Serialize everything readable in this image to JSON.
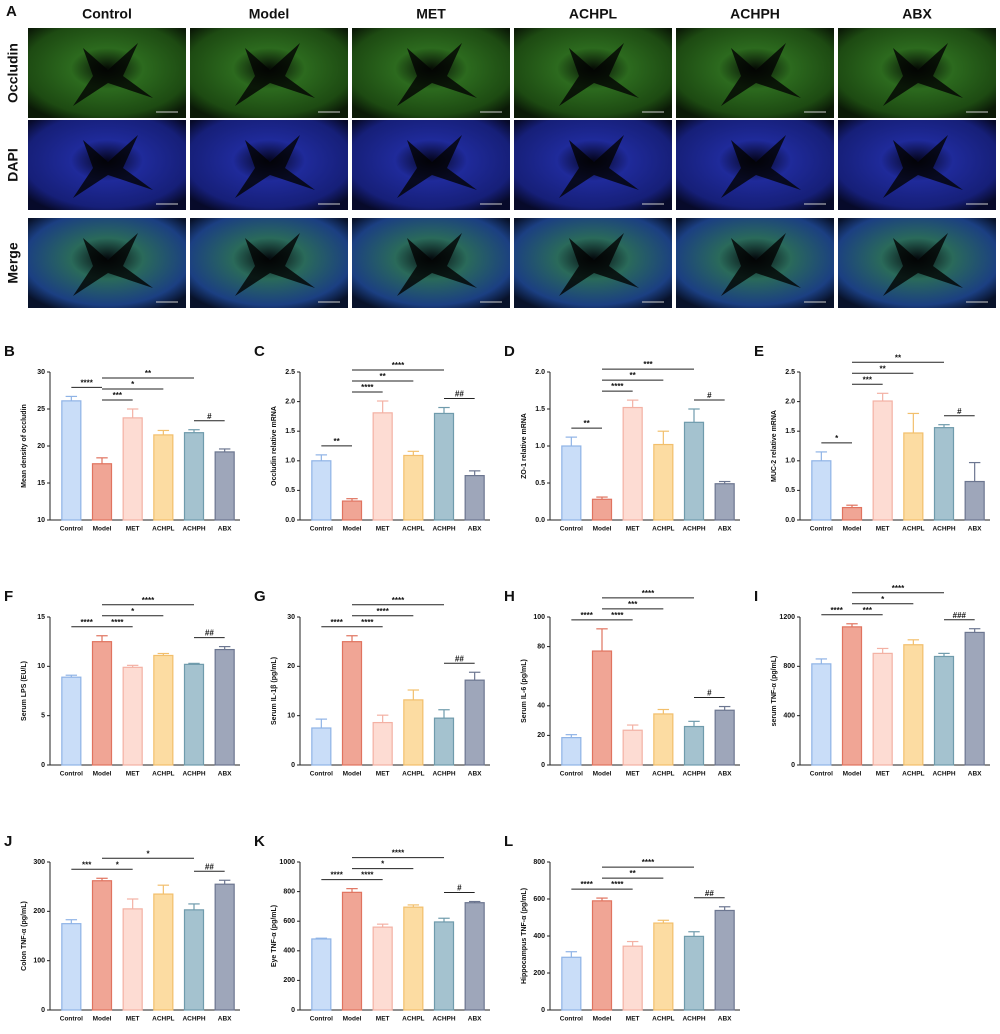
{
  "panel_a": {
    "label": "A",
    "columns": [
      "Control",
      "Model",
      "MET",
      "ACHPL",
      "ACHPH",
      "ABX"
    ],
    "rows": [
      "Occludin",
      "DAPI",
      "Merge"
    ]
  },
  "style": {
    "fills": [
      "#c9ddf8",
      "#f0a595",
      "#fddcd3",
      "#fcdca2",
      "#a4c2cf",
      "#9ea6ba"
    ],
    "edges": [
      "#8fb3e6",
      "#e0735f",
      "#f3b1a4",
      "#f2bf6c",
      "#6f9bac",
      "#6c7690"
    ]
  },
  "chart_data": [
    {
      "type": "bar",
      "panel": "B",
      "ylabel": "Mean density of occludin",
      "categories": [
        "Control",
        "Model",
        "MET",
        "ACHPL",
        "ACHPH",
        "ABX"
      ],
      "values": [
        26.1,
        17.6,
        23.8,
        21.5,
        21.8,
        19.2
      ],
      "errors": [
        0.6,
        0.8,
        1.2,
        0.6,
        0.4,
        0.4
      ],
      "ylim": [
        10,
        30
      ],
      "yticks": [
        10,
        15,
        20,
        25,
        30
      ],
      "significance": [
        {
          "from": 0,
          "to": 1,
          "label": "****"
        },
        {
          "from": 1,
          "to": 2,
          "label": "***"
        },
        {
          "from": 1,
          "to": 3,
          "label": "*"
        },
        {
          "from": 1,
          "to": 4,
          "label": "**"
        },
        {
          "from": 4,
          "to": 5,
          "label": "#"
        }
      ]
    },
    {
      "type": "bar",
      "panel": "C",
      "ylabel": "Occludin relative mRNA",
      "categories": [
        "Control",
        "Model",
        "MET",
        "ACHPL",
        "ACHPH",
        "ABX"
      ],
      "values": [
        1.0,
        0.32,
        1.81,
        1.09,
        1.8,
        0.75
      ],
      "errors": [
        0.1,
        0.04,
        0.2,
        0.07,
        0.1,
        0.08
      ],
      "ylim": [
        0,
        2.5
      ],
      "yticks": [
        {
          "value": 0,
          "label": "0.0"
        },
        0.5,
        {
          "value": 1,
          "label": "1.0"
        },
        1.5,
        {
          "value": 2,
          "label": "2.0"
        },
        2.5
      ],
      "significance": [
        {
          "from": 0,
          "to": 1,
          "label": "**"
        },
        {
          "from": 1,
          "to": 2,
          "label": "****"
        },
        {
          "from": 1,
          "to": 3,
          "label": "**"
        },
        {
          "from": 1,
          "to": 4,
          "label": "****"
        },
        {
          "from": 4,
          "to": 5,
          "label": "##"
        }
      ]
    },
    {
      "type": "bar",
      "panel": "D",
      "ylabel": "ZO-1 relative mRNA",
      "categories": [
        "Control",
        "Model",
        "MET",
        "ACHPL",
        "ACHPH",
        "ABX"
      ],
      "values": [
        1.0,
        0.28,
        1.52,
        1.02,
        1.32,
        0.49
      ],
      "errors": [
        0.12,
        0.03,
        0.1,
        0.18,
        0.18,
        0.03
      ],
      "ylim": [
        0,
        2
      ],
      "yticks": [
        {
          "value": 0,
          "label": "0.0"
        },
        0.5,
        {
          "value": 1,
          "label": "1.0"
        },
        1.5,
        {
          "value": 2,
          "label": "2.0"
        }
      ],
      "significance": [
        {
          "from": 0,
          "to": 1,
          "label": "**"
        },
        {
          "from": 1,
          "to": 2,
          "label": "****"
        },
        {
          "from": 1,
          "to": 3,
          "label": "**"
        },
        {
          "from": 1,
          "to": 4,
          "label": "***"
        },
        {
          "from": 4,
          "to": 5,
          "label": "#"
        }
      ]
    },
    {
      "type": "bar",
      "panel": "E",
      "ylabel": "MUC-2 relative mRNA",
      "categories": [
        "Control",
        "Model",
        "MET",
        "ACHPL",
        "ACHPH",
        "ABX"
      ],
      "values": [
        1.0,
        0.21,
        2.01,
        1.47,
        1.56,
        0.65
      ],
      "errors": [
        0.15,
        0.04,
        0.13,
        0.33,
        0.05,
        0.32
      ],
      "ylim": [
        0,
        2.5
      ],
      "yticks": [
        {
          "value": 0,
          "label": "0.0"
        },
        0.5,
        {
          "value": 1,
          "label": "1.0"
        },
        1.5,
        {
          "value": 2,
          "label": "2.0"
        },
        2.5
      ],
      "significance": [
        {
          "from": 0,
          "to": 1,
          "label": "*"
        },
        {
          "from": 1,
          "to": 2,
          "label": "***"
        },
        {
          "from": 1,
          "to": 3,
          "label": "**"
        },
        {
          "from": 1,
          "to": 4,
          "label": "**"
        },
        {
          "from": 4,
          "to": 5,
          "label": "#"
        }
      ]
    },
    {
      "type": "bar",
      "panel": "F",
      "ylabel": "Serum LPS (EU/L)",
      "categories": [
        "Control",
        "Model",
        "MET",
        "ACHPL",
        "ACHPH",
        "ABX"
      ],
      "values": [
        8.9,
        12.5,
        9.9,
        11.1,
        10.2,
        11.7
      ],
      "errors": [
        0.2,
        0.6,
        0.2,
        0.2,
        0.1,
        0.3
      ],
      "ylim": [
        0,
        15
      ],
      "yticks": [
        0,
        5,
        10,
        15
      ],
      "significance": [
        {
          "from": 0,
          "to": 1,
          "label": "****"
        },
        {
          "from": 1,
          "to": 2,
          "label": "****"
        },
        {
          "from": 1,
          "to": 3,
          "label": "*"
        },
        {
          "from": 1,
          "to": 4,
          "label": "****"
        },
        {
          "from": 4,
          "to": 5,
          "label": "##"
        }
      ]
    },
    {
      "type": "bar",
      "panel": "G",
      "ylabel": "Serum IL-1β (pg/mL)",
      "categories": [
        "Control",
        "Model",
        "MET",
        "ACHPL",
        "ACHPH",
        "ABX"
      ],
      "values": [
        7.5,
        25,
        8.6,
        13.2,
        9.5,
        17.2
      ],
      "errors": [
        1.8,
        1.2,
        1.5,
        2,
        1.7,
        1.6
      ],
      "ylim": [
        0,
        30
      ],
      "yticks": [
        0,
        10,
        20,
        30
      ],
      "significance": [
        {
          "from": 0,
          "to": 1,
          "label": "****"
        },
        {
          "from": 1,
          "to": 2,
          "label": "****"
        },
        {
          "from": 1,
          "to": 3,
          "label": "****"
        },
        {
          "from": 1,
          "to": 4,
          "label": "****"
        },
        {
          "from": 4,
          "to": 5,
          "label": "##"
        }
      ]
    },
    {
      "type": "bar",
      "panel": "H",
      "ylabel": "Serum IL-6 (pg/mL)",
      "categories": [
        "Control",
        "Model",
        "MET",
        "ACHPL",
        "ACHPH",
        "ABX"
      ],
      "values": [
        18.5,
        77,
        23.5,
        34.5,
        26,
        37
      ],
      "errors": [
        2,
        15,
        3.5,
        3,
        3.5,
        2.5
      ],
      "ylim": [
        0,
        100
      ],
      "yticks": [
        0,
        20,
        40,
        80,
        100
      ],
      "significance": [
        {
          "from": 0,
          "to": 1,
          "label": "****"
        },
        {
          "from": 1,
          "to": 2,
          "label": "****"
        },
        {
          "from": 1,
          "to": 3,
          "label": "***"
        },
        {
          "from": 1,
          "to": 4,
          "label": "****"
        },
        {
          "from": 4,
          "to": 5,
          "label": "#"
        }
      ]
    },
    {
      "type": "bar",
      "panel": "I",
      "ylabel": "serum TNF-α (pg/mL)",
      "categories": [
        "Control",
        "Model",
        "MET",
        "ACHPL",
        "ACHPH",
        "ABX"
      ],
      "values": [
        820,
        1120,
        905,
        975,
        880,
        1075
      ],
      "errors": [
        40,
        25,
        40,
        40,
        25,
        30
      ],
      "ylim": [
        0,
        1200
      ],
      "yticks": [
        0,
        400,
        800,
        1200
      ],
      "significance": [
        {
          "from": 0,
          "to": 1,
          "label": "****"
        },
        {
          "from": 1,
          "to": 2,
          "label": "***"
        },
        {
          "from": 1,
          "to": 3,
          "label": "*"
        },
        {
          "from": 1,
          "to": 4,
          "label": "****"
        },
        {
          "from": 4,
          "to": 5,
          "label": "###"
        }
      ]
    },
    {
      "type": "bar",
      "panel": "J",
      "ylabel": "Colon TNF-α (pg/mL)",
      "categories": [
        "Control",
        "Model",
        "MET",
        "ACHPL",
        "ACHPH",
        "ABX"
      ],
      "values": [
        175,
        262,
        205,
        235,
        203,
        255
      ],
      "errors": [
        8,
        5,
        20,
        18,
        12,
        8
      ],
      "ylim": [
        0,
        300
      ],
      "yticks": [
        0,
        100,
        200,
        300
      ],
      "significance": [
        {
          "from": 0,
          "to": 1,
          "label": "***"
        },
        {
          "from": 1,
          "to": 2,
          "label": "*"
        },
        {
          "from": 1,
          "to": 4,
          "label": "*"
        },
        {
          "from": 4,
          "to": 5,
          "label": "##"
        }
      ]
    },
    {
      "type": "bar",
      "panel": "K",
      "ylabel": "Eye TNF-α (pg/mL)",
      "categories": [
        "Control",
        "Model",
        "MET",
        "ACHPL",
        "ACHPH",
        "ABX"
      ],
      "values": [
        480,
        795,
        560,
        695,
        595,
        725
      ],
      "errors": [
        5,
        25,
        20,
        15,
        25,
        8
      ],
      "ylim": [
        0,
        1000
      ],
      "yticks": [
        0,
        200,
        400,
        600,
        800,
        1000
      ],
      "significance": [
        {
          "from": 0,
          "to": 1,
          "label": "****"
        },
        {
          "from": 1,
          "to": 2,
          "label": "****"
        },
        {
          "from": 1,
          "to": 3,
          "label": "*"
        },
        {
          "from": 1,
          "to": 4,
          "label": "****"
        },
        {
          "from": 4,
          "to": 5,
          "label": "#"
        }
      ]
    },
    {
      "type": "bar",
      "panel": "L",
      "ylabel": "Hippocampus TNF-α (pg/mL)",
      "categories": [
        "Control",
        "Model",
        "MET",
        "ACHPL",
        "ACHPH",
        "ABX"
      ],
      "values": [
        285,
        590,
        345,
        470,
        398,
        538
      ],
      "errors": [
        30,
        15,
        25,
        15,
        25,
        20
      ],
      "ylim": [
        0,
        800
      ],
      "yticks": [
        0,
        200,
        400,
        600,
        800
      ],
      "significance": [
        {
          "from": 0,
          "to": 1,
          "label": "****"
        },
        {
          "from": 1,
          "to": 2,
          "label": "****"
        },
        {
          "from": 1,
          "to": 3,
          "label": "**"
        },
        {
          "from": 1,
          "to": 4,
          "label": "****"
        },
        {
          "from": 4,
          "to": 5,
          "label": "##"
        }
      ]
    }
  ]
}
